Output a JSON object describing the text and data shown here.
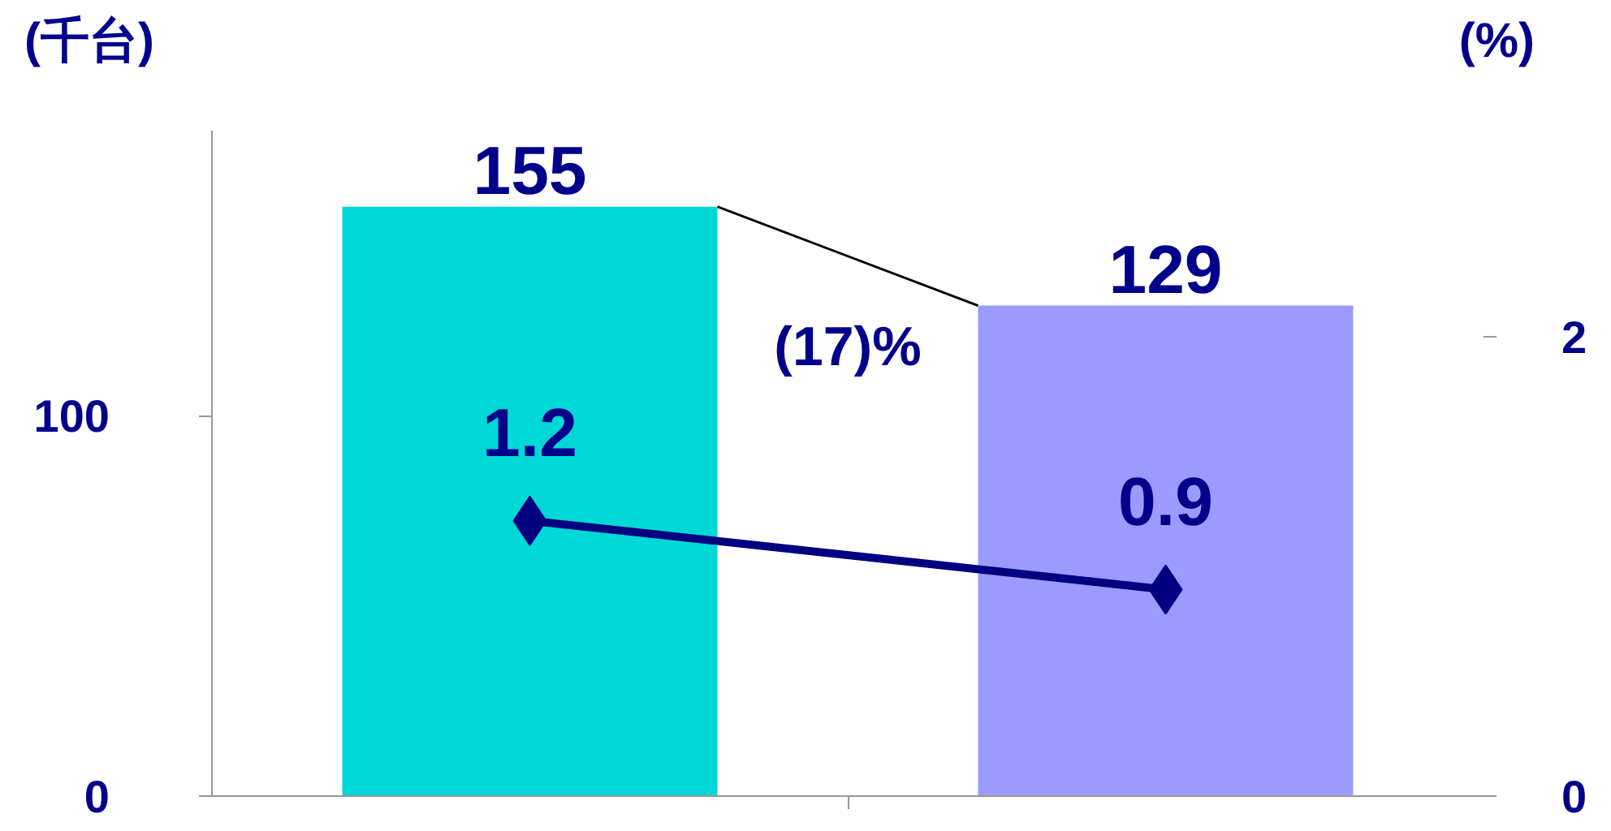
{
  "chart_data": {
    "type": "bar",
    "ylabel": "(千台)",
    "y2label": "(%)",
    "categories": [
      null,
      null
    ],
    "series": [
      {
        "colors": [
          "#00d8d8",
          "#9a9aff"
        ],
        "values": [
          155,
          129
        ]
      },
      {
        "type": "line",
        "axis": "y2",
        "color": "#000080",
        "values": [
          1.2,
          0.9
        ],
        "marker": "diamond",
        "line_style": "solid"
      }
    ],
    "ylim": [
      0,
      175
    ],
    "yticks": [
      0,
      100
    ],
    "y2lim": [
      0,
      2.9
    ],
    "y2ticks": [
      0,
      2
    ],
    "annotations": [
      "(17)%"
    ],
    "data_labels": true
  }
}
